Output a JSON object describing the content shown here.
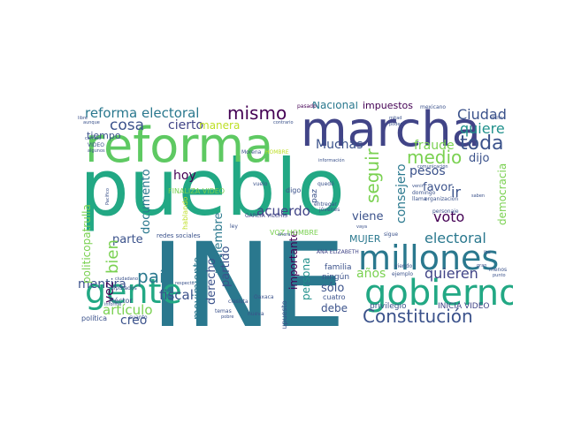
{
  "wordcloud": {
    "words": [
      {
        "text": "pueblo",
        "color": "#22a884"
      },
      {
        "text": "INE",
        "color": "#2a788e"
      },
      {
        "text": "reforma",
        "color": "#5ec962"
      },
      {
        "text": "marcha",
        "color": "#414487"
      },
      {
        "text": "gente",
        "color": "#22a884"
      },
      {
        "text": "gobierno",
        "color": "#22a884"
      },
      {
        "text": "millones",
        "color": "#2a788e"
      },
      {
        "text": "Constitución",
        "color": "#3b528b"
      },
      {
        "text": "mismo",
        "color": "#440154"
      },
      {
        "text": "reforma electoral",
        "color": "#2a788e"
      },
      {
        "text": "medio",
        "color": "#7ad151"
      },
      {
        "text": "toda",
        "color": "#3b528b"
      },
      {
        "text": "seguir",
        "color": "#7ad151"
      },
      {
        "text": "país",
        "color": "#2a788e"
      },
      {
        "text": "electoral",
        "color": "#2a788e"
      },
      {
        "text": "quieren",
        "color": "#414487"
      },
      {
        "text": "artículo",
        "color": "#7ad151"
      },
      {
        "text": "cosa",
        "color": "#3b528b"
      },
      {
        "text": "cierto",
        "color": "#414487"
      },
      {
        "text": "Ciudad",
        "color": "#3b528b"
      },
      {
        "text": "quiere",
        "color": "#21918c"
      },
      {
        "text": "Nacional",
        "color": "#2a788e"
      },
      {
        "text": "impuestos",
        "color": "#440154"
      },
      {
        "text": "fraude",
        "color": "#7ad151"
      },
      {
        "text": "pesos",
        "color": "#3b528b"
      },
      {
        "text": "dijo",
        "color": "#3b528b"
      },
      {
        "text": "consejero",
        "color": "#2a788e"
      },
      {
        "text": "democracia",
        "color": "#7ad151"
      },
      {
        "text": "voto",
        "color": "#440154"
      },
      {
        "text": "favor",
        "color": "#3b528b"
      },
      {
        "text": "viene",
        "color": "#3b528b"
      },
      {
        "text": "acuerdo",
        "color": "#414487"
      },
      {
        "text": "hoy",
        "color": "#440154"
      },
      {
        "text": "documento",
        "color": "#2a788e"
      },
      {
        "text": "noviembre",
        "color": "#2a788e"
      },
      {
        "text": "parte",
        "color": "#3b528b"
      },
      {
        "text": "fiscal",
        "color": "#3b528b"
      },
      {
        "text": "mentira",
        "color": "#3b528b"
      },
      {
        "text": "vez",
        "color": "#440154"
      },
      {
        "text": "creo",
        "color": "#3b528b"
      },
      {
        "text": "bien",
        "color": "#7ad151"
      },
      {
        "text": "politicopatrulla",
        "color": "#7ad151"
      },
      {
        "text": "movimiento",
        "color": "#2a788e"
      },
      {
        "text": "derecho",
        "color": "#3b528b"
      },
      {
        "text": "partido",
        "color": "#3b528b"
      },
      {
        "text": "persona",
        "color": "#21918c"
      },
      {
        "text": "importante",
        "color": "#440154"
      },
      {
        "text": "presupuesto",
        "color": "#3b528b"
      },
      {
        "text": "años",
        "color": "#7ad151"
      },
      {
        "text": "MUJER",
        "color": "#2a788e"
      },
      {
        "text": "sólo",
        "color": "#3b528b"
      },
      {
        "text": "debe",
        "color": "#3b528b"
      },
      {
        "text": "Muchas",
        "color": "#3b528b"
      },
      {
        "text": "ir",
        "color": "#3b528b"
      },
      {
        "text": "manera",
        "color": "#bddf26"
      },
      {
        "text": "FINALIZA VIDEO",
        "color": "#7ad151"
      },
      {
        "text": "VOZ HOMBRE",
        "color": "#7ad151"
      },
      {
        "text": "redes sociales",
        "color": "#3b528b"
      },
      {
        "text": "INICIA VIDEO",
        "color": "#414487"
      },
      {
        "text": "ANA ELIZABETH",
        "color": "#414487"
      },
      {
        "text": "familia",
        "color": "#3b528b"
      },
      {
        "text": "ningún",
        "color": "#3b528b"
      },
      {
        "text": "privilegio",
        "color": "#3b528b"
      },
      {
        "text": "cuatro",
        "color": "#3b528b"
      },
      {
        "text": "tiempo",
        "color": "#3b528b"
      },
      {
        "text": "hablando",
        "color": "#bddf26"
      },
      {
        "text": "Héctor",
        "color": "#3b528b"
      },
      {
        "text": "diputados",
        "color": "#3b528b"
      },
      {
        "text": "política",
        "color": "#3b528b"
      },
      {
        "text": "GARCIA VILCHIS",
        "color": "#414487"
      },
      {
        "text": "pasado",
        "color": "#440154"
      },
      {
        "text": "mexicano",
        "color": "#3b528b"
      },
      {
        "text": "paz",
        "color": "#3b528b"
      },
      {
        "text": "digo",
        "color": "#3b528b"
      },
      {
        "text": "vuelo",
        "color": "#3b528b"
      },
      {
        "text": "Morena",
        "color": "#3b528b"
      },
      {
        "text": "HOMBRE",
        "color": "#bddf26"
      },
      {
        "text": "entregar",
        "color": "#3b528b"
      },
      {
        "text": "jóvenes",
        "color": "#3b528b"
      },
      {
        "text": "domingo",
        "color": "#3b528b"
      },
      {
        "text": "llama",
        "color": "#3b528b"
      },
      {
        "text": "organización",
        "color": "#3b528b"
      },
      {
        "text": "personaje",
        "color": "#3b528b"
      },
      {
        "text": "viendo",
        "color": "#3b528b"
      },
      {
        "text": "ejemplo",
        "color": "#3b528b"
      },
      {
        "text": "nueva",
        "color": "#3b528b"
      },
      {
        "text": "temas",
        "color": "#3b528b"
      },
      {
        "text": "clasista",
        "color": "#3b528b"
      },
      {
        "text": "cuanto",
        "color": "#3b528b"
      },
      {
        "text": "informe",
        "color": "#3b528b"
      },
      {
        "text": "respecto",
        "color": "#3b528b"
      },
      {
        "text": "Oaxaca",
        "color": "#3b528b"
      },
      {
        "text": "VIDEO",
        "color": "#3b528b"
      },
      {
        "text": "comunicación",
        "color": "#3b528b"
      },
      {
        "text": "información",
        "color": "#3b528b"
      },
      {
        "text": "algunos",
        "color": "#3b528b"
      },
      {
        "text": "libre",
        "color": "#3b528b"
      },
      {
        "text": "aunque",
        "color": "#3b528b"
      },
      {
        "text": "camino",
        "color": "#3b528b"
      },
      {
        "text": "ciudadano",
        "color": "#3b528b"
      },
      {
        "text": "contrario",
        "color": "#3b528b"
      },
      {
        "text": "poder",
        "color": "#3b528b"
      },
      {
        "text": "mitad",
        "color": "#3b528b"
      },
      {
        "text": "dicho",
        "color": "#3b528b"
      },
      {
        "text": "sigue",
        "color": "#3b528b"
      },
      {
        "text": "menos",
        "color": "#3b528b"
      },
      {
        "text": "punto",
        "color": "#3b528b"
      },
      {
        "text": "gran",
        "color": "#3b528b"
      },
      {
        "text": "iba",
        "color": "#3b528b"
      },
      {
        "text": "quedó",
        "color": "#3b528b"
      },
      {
        "text": "venir",
        "color": "#3b528b"
      },
      {
        "text": "pobre",
        "color": "#3b528b"
      },
      {
        "text": "ley",
        "color": "#3b528b"
      },
      {
        "text": "vaya",
        "color": "#3b528b"
      },
      {
        "text": "ahora",
        "color": "#3b528b"
      },
      {
        "text": "saben",
        "color": "#3b528b"
      },
      {
        "text": "Pacífico",
        "color": "#3b528b"
      }
    ]
  }
}
